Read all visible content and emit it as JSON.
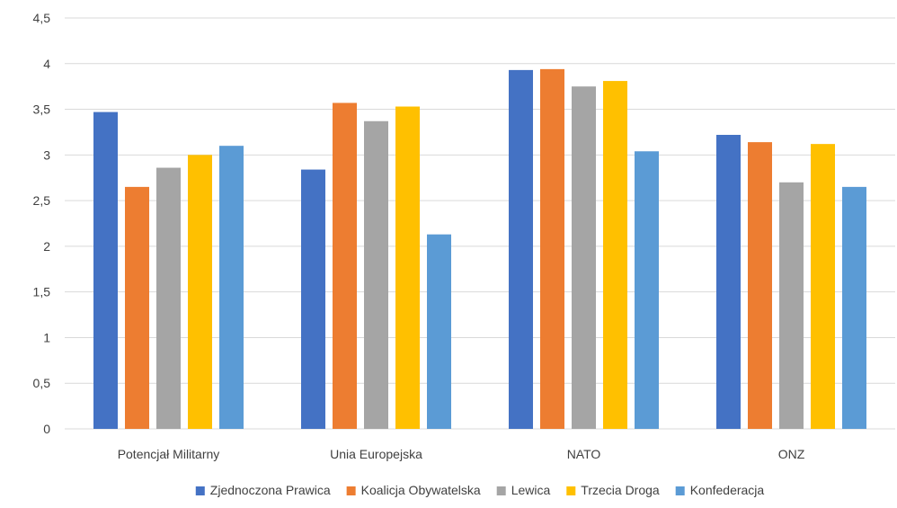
{
  "chart_data": {
    "type": "bar",
    "title": "",
    "xlabel": "",
    "ylabel": "",
    "ylim": [
      0,
      4.5
    ],
    "yticks": [
      "0",
      "0,5",
      "1",
      "1,5",
      "2",
      "2,5",
      "3",
      "3,5",
      "4",
      "4,5"
    ],
    "grid": true,
    "legend_position": "bottom",
    "categories": [
      "Potencjał Militarny",
      "Unia Europejska",
      "NATO",
      "ONZ"
    ],
    "series": [
      {
        "name": "Zjednoczona Prawica",
        "color": "#4472c4",
        "values": [
          3.47,
          2.84,
          3.93,
          3.22
        ]
      },
      {
        "name": "Koalicja Obywatelska",
        "color": "#ed7d31",
        "values": [
          2.65,
          3.57,
          3.94,
          3.14
        ]
      },
      {
        "name": "Lewica",
        "color": "#a5a5a5",
        "values": [
          2.86,
          3.37,
          3.75,
          2.7
        ]
      },
      {
        "name": "Trzecia Droga",
        "color": "#ffc000",
        "values": [
          3.0,
          3.53,
          3.81,
          3.12
        ]
      },
      {
        "name": "Konfederacja",
        "color": "#5b9bd5",
        "values": [
          3.1,
          2.13,
          3.04,
          2.65
        ]
      }
    ]
  }
}
